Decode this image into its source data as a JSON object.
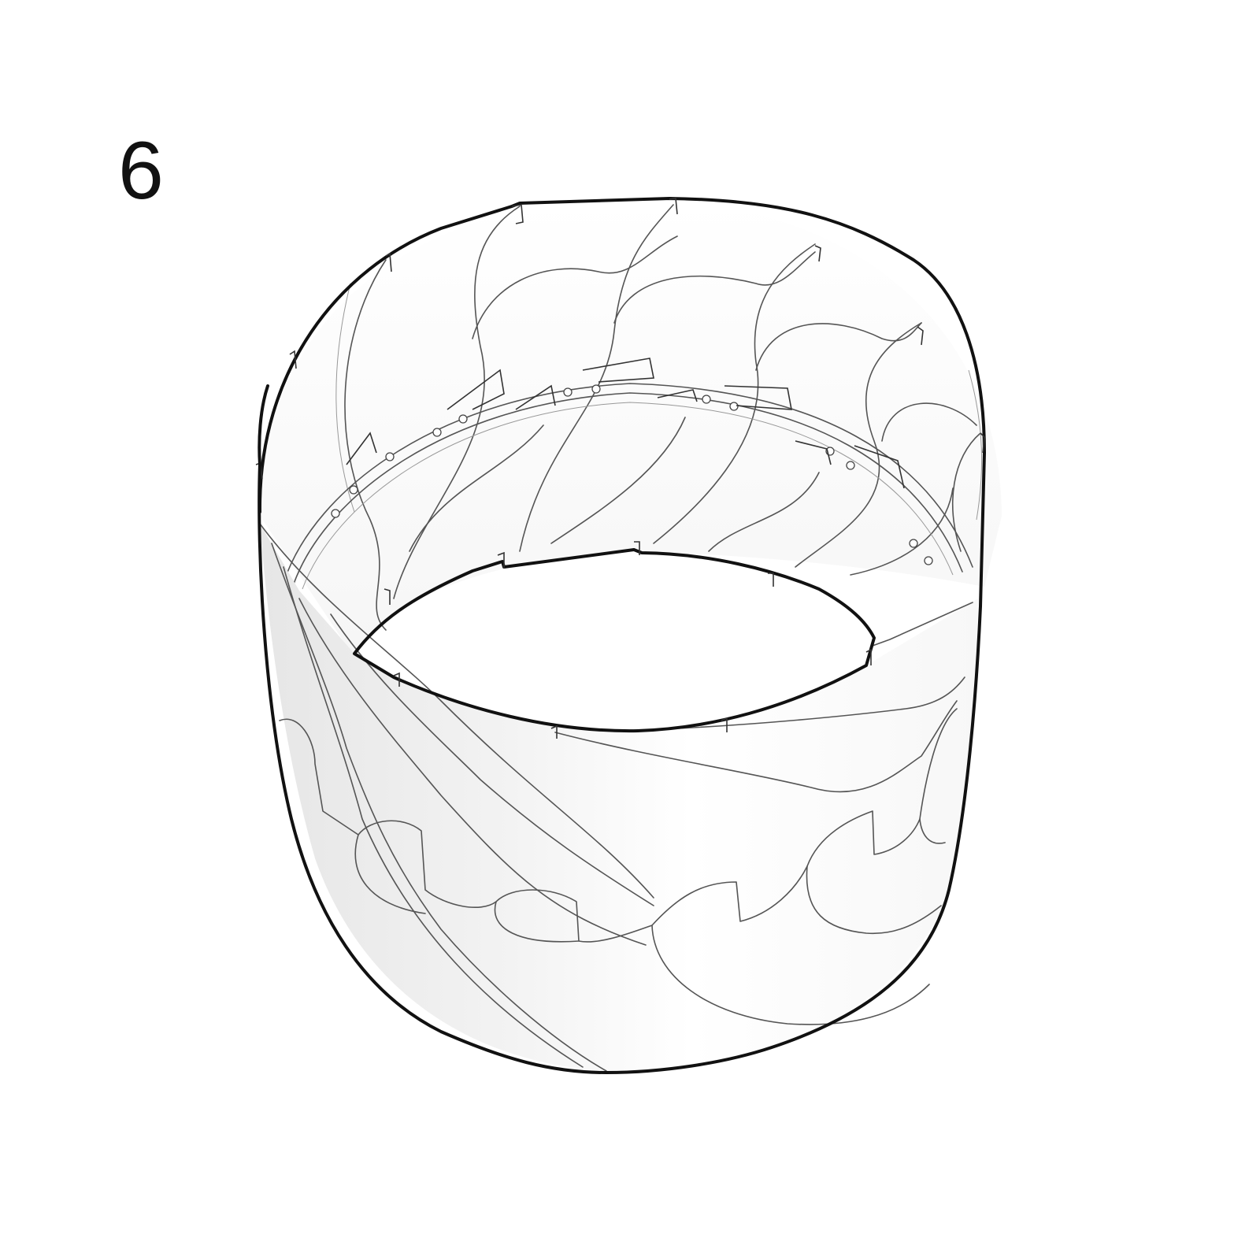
{
  "step": {
    "number": "6"
  },
  "illustration": {
    "icon": "lampshade-drum-icon",
    "colors": {
      "outline": "#111111",
      "panel_lines": "#555555",
      "shading": "#ececec",
      "background": "#ffffff"
    }
  }
}
